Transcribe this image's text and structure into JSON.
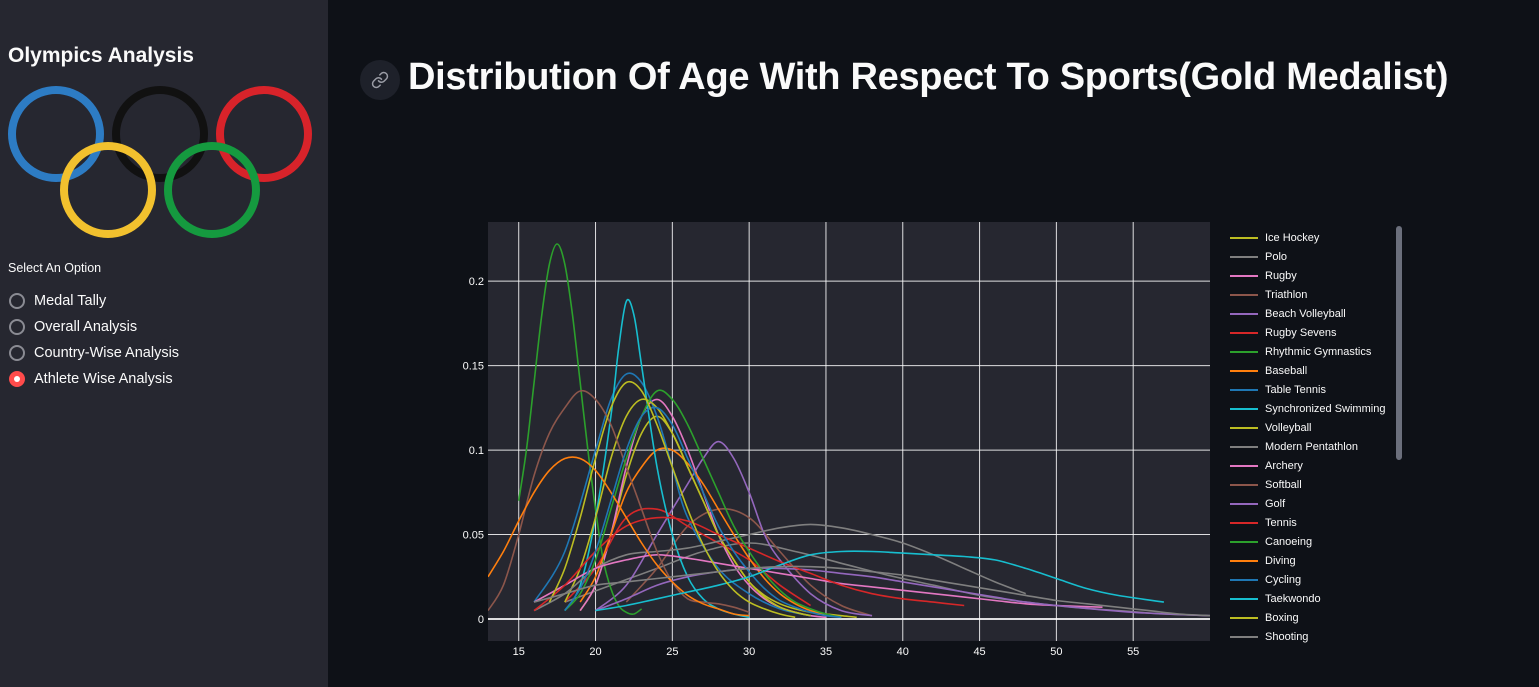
{
  "sidebar": {
    "title": "Olympics Analysis",
    "select_label": "Select An Option",
    "options": [
      {
        "label": "Medal Tally",
        "selected": false
      },
      {
        "label": "Overall Analysis",
        "selected": false
      },
      {
        "label": "Country-Wise Analysis",
        "selected": false
      },
      {
        "label": "Athlete Wise Analysis",
        "selected": true
      }
    ],
    "ring_colors": [
      "#2d7cc4",
      "#111111",
      "#d8232a",
      "#f2c12e",
      "#159a3f"
    ]
  },
  "main": {
    "title": "Distribution Of Age With Respect To Sports(Gold Medalist)",
    "link_icon": "link-icon"
  },
  "chart_data": {
    "type": "line",
    "title": "",
    "xlabel": "",
    "ylabel": "",
    "xlim": [
      13,
      60
    ],
    "ylim": [
      -0.013,
      0.235
    ],
    "xticks": [
      15,
      20,
      25,
      30,
      35,
      40,
      45,
      50,
      55
    ],
    "yticks": [
      0,
      0.05,
      0.1,
      0.15,
      0.2
    ],
    "ytick_labels": [
      "0",
      "0.05",
      "0.1",
      "0.15",
      "0.2"
    ],
    "grid": true,
    "legend_position": "right",
    "series": [
      {
        "name": "Ice Hockey",
        "color": "#bcbd22",
        "x": [
          19,
          20,
          21,
          22,
          23,
          24,
          25,
          26,
          27,
          28,
          29,
          30,
          31,
          32,
          33,
          34,
          35,
          36,
          37
        ],
        "y": [
          0.005,
          0.02,
          0.05,
          0.085,
          0.11,
          0.12,
          0.11,
          0.09,
          0.07,
          0.05,
          0.035,
          0.022,
          0.014,
          0.009,
          0.006,
          0.004,
          0.003,
          0.002,
          0.001
        ]
      },
      {
        "name": "Polo",
        "color": "#7f7f7f",
        "x": [
          18,
          21,
          24,
          27,
          30,
          33,
          36,
          39,
          42,
          45,
          48,
          51,
          54,
          57,
          60
        ],
        "y": [
          0.01,
          0.02,
          0.03,
          0.04,
          0.045,
          0.04,
          0.033,
          0.026,
          0.02,
          0.014,
          0.01,
          0.007,
          0.005,
          0.003,
          0.002
        ]
      },
      {
        "name": "Rugby",
        "color": "#e377c2",
        "x": [
          19,
          20,
          21,
          22,
          23,
          24,
          25,
          26,
          27,
          28,
          29,
          30,
          31,
          32,
          33,
          34,
          35
        ],
        "y": [
          0.005,
          0.02,
          0.05,
          0.09,
          0.12,
          0.13,
          0.12,
          0.1,
          0.075,
          0.05,
          0.032,
          0.02,
          0.012,
          0.007,
          0.004,
          0.002,
          0.001
        ]
      },
      {
        "name": "Triathlon",
        "color": "#8c564b",
        "x": [
          22,
          24,
          26,
          28,
          30,
          32,
          34,
          36,
          38
        ],
        "y": [
          0.01,
          0.03,
          0.055,
          0.065,
          0.06,
          0.04,
          0.02,
          0.008,
          0.002
        ]
      },
      {
        "name": "Beach Volleyball",
        "color": "#9467bd",
        "x": [
          20,
          22,
          24,
          26,
          27,
          28,
          29,
          30,
          31,
          32,
          34,
          36,
          38
        ],
        "y": [
          0.005,
          0.02,
          0.05,
          0.08,
          0.095,
          0.105,
          0.095,
          0.075,
          0.05,
          0.035,
          0.015,
          0.005,
          0.002
        ]
      },
      {
        "name": "Rugby Sevens",
        "color": "#d62728",
        "x": [
          18,
          20,
          22,
          24,
          26,
          28,
          30,
          32,
          34
        ],
        "y": [
          0.01,
          0.03,
          0.06,
          0.065,
          0.055,
          0.045,
          0.035,
          0.02,
          0.008
        ]
      },
      {
        "name": "Rhythmic Gymnastics",
        "color": "#2ca02c",
        "x": [
          15,
          15.5,
          16,
          16.5,
          17,
          17.5,
          18,
          18.5,
          19,
          19.5,
          20,
          20.5,
          21,
          21.5,
          22,
          22.5,
          23
        ],
        "y": [
          0.07,
          0.1,
          0.14,
          0.18,
          0.21,
          0.222,
          0.21,
          0.18,
          0.14,
          0.1,
          0.065,
          0.035,
          0.018,
          0.008,
          0.004,
          0.003,
          0.006
        ]
      },
      {
        "name": "Baseball",
        "color": "#ff7f0e",
        "x": [
          19,
          20,
          21,
          22,
          23,
          24,
          25,
          26,
          27,
          28,
          29,
          30,
          31,
          32,
          33,
          34,
          35,
          36
        ],
        "y": [
          0.01,
          0.025,
          0.05,
          0.075,
          0.09,
          0.1,
          0.1,
          0.092,
          0.08,
          0.065,
          0.05,
          0.036,
          0.024,
          0.015,
          0.009,
          0.005,
          0.003,
          0.001
        ]
      },
      {
        "name": "Table Tennis",
        "color": "#1f77b4",
        "x": [
          16,
          18,
          20,
          21,
          22,
          23,
          24,
          25,
          26,
          28,
          30,
          32,
          34
        ],
        "y": [
          0.01,
          0.04,
          0.1,
          0.13,
          0.145,
          0.14,
          0.12,
          0.09,
          0.06,
          0.03,
          0.015,
          0.006,
          0.002
        ]
      },
      {
        "name": "Synchronized Swimming",
        "color": "#17becf",
        "x": [
          18,
          19,
          20,
          21,
          21.5,
          22,
          22.5,
          23,
          24,
          25,
          26,
          27,
          28,
          29,
          30
        ],
        "y": [
          0.005,
          0.02,
          0.06,
          0.12,
          0.16,
          0.188,
          0.18,
          0.15,
          0.09,
          0.05,
          0.025,
          0.012,
          0.006,
          0.003,
          0.001
        ]
      },
      {
        "name": "Volleyball",
        "color": "#bcbd22",
        "x": [
          18,
          19,
          20,
          21,
          22,
          23,
          24,
          25,
          26,
          27,
          28,
          29,
          30,
          31,
          32,
          33,
          34
        ],
        "y": [
          0.01,
          0.03,
          0.06,
          0.095,
          0.12,
          0.13,
          0.125,
          0.11,
          0.09,
          0.07,
          0.05,
          0.035,
          0.022,
          0.013,
          0.007,
          0.004,
          0.002
        ]
      },
      {
        "name": "Modern Pentathlon",
        "color": "#7f7f7f",
        "x": [
          16,
          18,
          20,
          22,
          24,
          26,
          28,
          30,
          32,
          34,
          36,
          38,
          40,
          42,
          44,
          46,
          48
        ],
        "y": [
          0.005,
          0.015,
          0.03,
          0.038,
          0.04,
          0.042,
          0.046,
          0.05,
          0.054,
          0.056,
          0.054,
          0.05,
          0.045,
          0.038,
          0.03,
          0.022,
          0.015
        ]
      },
      {
        "name": "Archery",
        "color": "#e377c2",
        "x": [
          16,
          18,
          20,
          22,
          24,
          26,
          28,
          30,
          32,
          34,
          36,
          38,
          40,
          42,
          44,
          46,
          48,
          50,
          53
        ],
        "y": [
          0.01,
          0.02,
          0.03,
          0.035,
          0.038,
          0.036,
          0.033,
          0.03,
          0.027,
          0.024,
          0.021,
          0.019,
          0.017,
          0.015,
          0.013,
          0.011,
          0.009,
          0.008,
          0.007
        ]
      },
      {
        "name": "Softball",
        "color": "#8c564b",
        "x": [
          13,
          14,
          15,
          16,
          17,
          18,
          19,
          20,
          21,
          22,
          23,
          24,
          25,
          26,
          27,
          28,
          29,
          30
        ],
        "y": [
          0.005,
          0.02,
          0.05,
          0.085,
          0.11,
          0.125,
          0.135,
          0.13,
          0.115,
          0.09,
          0.065,
          0.04,
          0.022,
          0.012,
          0.01,
          0.009,
          0.007,
          0.004
        ]
      },
      {
        "name": "Golf",
        "color": "#9467bd",
        "x": [
          20,
          22,
          24,
          26,
          28,
          30,
          32,
          34,
          36,
          38,
          40,
          42,
          44,
          46,
          48,
          50,
          55,
          60
        ],
        "y": [
          0.005,
          0.012,
          0.02,
          0.025,
          0.028,
          0.03,
          0.03,
          0.029,
          0.027,
          0.025,
          0.022,
          0.019,
          0.016,
          0.013,
          0.01,
          0.008,
          0.004,
          0.002
        ]
      },
      {
        "name": "Tennis",
        "color": "#d62728",
        "x": [
          16,
          18,
          20,
          22,
          24,
          26,
          28,
          30,
          32,
          34,
          36,
          38,
          40,
          42,
          44
        ],
        "y": [
          0.005,
          0.02,
          0.04,
          0.055,
          0.06,
          0.058,
          0.05,
          0.042,
          0.034,
          0.027,
          0.02,
          0.015,
          0.012,
          0.01,
          0.008
        ]
      },
      {
        "name": "Canoeing",
        "color": "#2ca02c",
        "x": [
          18,
          19,
          20,
          21,
          22,
          23,
          24,
          25,
          26,
          27,
          28,
          29,
          30,
          31,
          32,
          33,
          34,
          35,
          36
        ],
        "y": [
          0.005,
          0.015,
          0.035,
          0.065,
          0.095,
          0.12,
          0.135,
          0.13,
          0.115,
          0.095,
          0.075,
          0.055,
          0.04,
          0.027,
          0.017,
          0.01,
          0.006,
          0.003,
          0.001
        ]
      },
      {
        "name": "Diving",
        "color": "#ff7f0e",
        "x": [
          13,
          14,
          15,
          16,
          17,
          18,
          19,
          20,
          21,
          22,
          23,
          24,
          25,
          26,
          27,
          28,
          29,
          30
        ],
        "y": [
          0.025,
          0.04,
          0.058,
          0.075,
          0.088,
          0.095,
          0.095,
          0.088,
          0.075,
          0.06,
          0.045,
          0.032,
          0.022,
          0.014,
          0.009,
          0.006,
          0.003,
          0.002
        ]
      },
      {
        "name": "Cycling",
        "color": "#1f77b4",
        "x": [
          18,
          19,
          20,
          21,
          22,
          23,
          24,
          25,
          26,
          27,
          28,
          29,
          30,
          31,
          32,
          33,
          34,
          35,
          36
        ],
        "y": [
          0.005,
          0.018,
          0.04,
          0.07,
          0.1,
          0.12,
          0.125,
          0.115,
          0.095,
          0.075,
          0.055,
          0.04,
          0.028,
          0.018,
          0.011,
          0.007,
          0.004,
          0.002,
          0.001
        ]
      },
      {
        "name": "Taekwondo",
        "color": "#17becf",
        "x": [
          20,
          22,
          24,
          26,
          28,
          30,
          32,
          34,
          36,
          38,
          40,
          42,
          44,
          46,
          48,
          50,
          52,
          54,
          57
        ],
        "y": [
          0.005,
          0.008,
          0.012,
          0.016,
          0.02,
          0.025,
          0.032,
          0.038,
          0.04,
          0.04,
          0.039,
          0.038,
          0.037,
          0.035,
          0.03,
          0.024,
          0.018,
          0.014,
          0.01
        ]
      },
      {
        "name": "Boxing",
        "color": "#bcbd22",
        "x": [
          17,
          18,
          19,
          20,
          21,
          22,
          23,
          24,
          25,
          26,
          27,
          28,
          29,
          30,
          31,
          32,
          33
        ],
        "y": [
          0.01,
          0.03,
          0.06,
          0.095,
          0.125,
          0.14,
          0.135,
          0.115,
          0.09,
          0.065,
          0.044,
          0.028,
          0.017,
          0.01,
          0.006,
          0.003,
          0.001
        ]
      },
      {
        "name": "Shooting",
        "color": "#7f7f7f",
        "x": [
          16,
          18,
          20,
          22,
          24,
          26,
          28,
          30,
          32,
          34,
          36,
          38,
          40,
          42,
          44,
          46,
          48,
          50,
          52,
          54,
          56,
          58,
          60
        ],
        "y": [
          0.01,
          0.015,
          0.02,
          0.022,
          0.024,
          0.026,
          0.028,
          0.03,
          0.031,
          0.031,
          0.03,
          0.028,
          0.026,
          0.023,
          0.02,
          0.017,
          0.014,
          0.011,
          0.009,
          0.007,
          0.005,
          0.003,
          0.002
        ]
      }
    ]
  }
}
